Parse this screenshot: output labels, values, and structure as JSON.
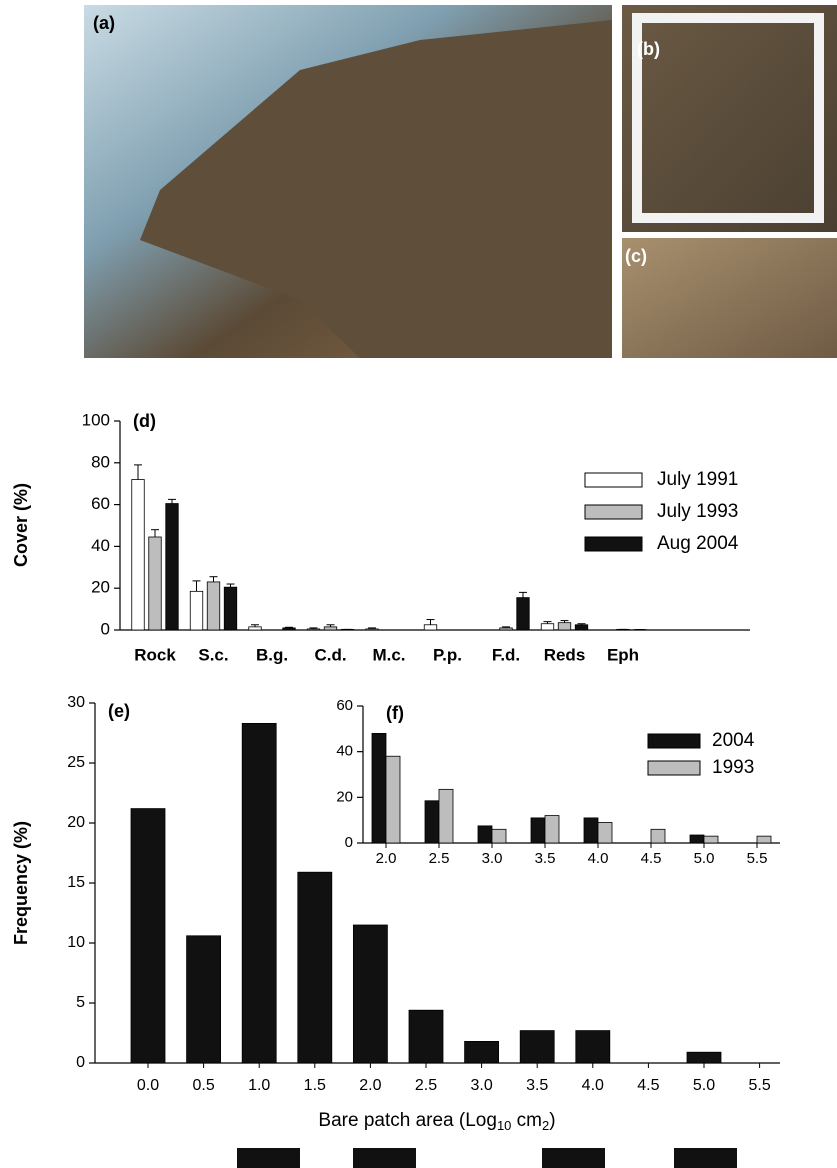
{
  "photos": [
    {
      "label": "(a)"
    },
    {
      "label": "(b)"
    },
    {
      "label": "(c)"
    }
  ],
  "chart_data": [
    {
      "type": "bar",
      "panel_label": "(d)",
      "y_label": "Cover (%)",
      "categories": [
        "Rock",
        "S.c.",
        "B.g.",
        "C.d.",
        "M.c.",
        "P.p.",
        "F.d.",
        "Reds",
        "Eph"
      ],
      "series": [
        {
          "name": "July 1991",
          "color": "#ffffff",
          "values": [
            72,
            18.5,
            1.5,
            0.5,
            0.5,
            2.5,
            0,
            3,
            0
          ],
          "errors": [
            7,
            5,
            1,
            0.5,
            0.5,
            2.5,
            0,
            1,
            0
          ]
        },
        {
          "name": "July 1993",
          "color": "#bdbdbd",
          "values": [
            44.5,
            23,
            0,
            1.5,
            0,
            0,
            1,
            3.5,
            0.3
          ],
          "errors": [
            3.5,
            2.5,
            0,
            1,
            0,
            0,
            0.5,
            1,
            0
          ]
        },
        {
          "name": "Aug 2004",
          "color": "#111111",
          "values": [
            60.5,
            20.5,
            1,
            0.3,
            0,
            0,
            15.5,
            2.5,
            0.2
          ],
          "errors": [
            2,
            1.5,
            0.3,
            0,
            0,
            0,
            2.5,
            0.5,
            0
          ]
        }
      ],
      "ylim": [
        0,
        100
      ],
      "yticks": [
        0,
        20,
        40,
        60,
        80,
        100
      ]
    },
    {
      "type": "bar",
      "panel_label": "(e)",
      "y_label": "Frequency (%)",
      "x_label": [
        "Bare patch area (Log",
        "10",
        " cm",
        "2",
        ")"
      ],
      "categories": [
        "0.0",
        "0.5",
        "1.0",
        "1.5",
        "2.0",
        "2.5",
        "3.0",
        "3.5",
        "4.0",
        "4.5",
        "5.0",
        "5.5"
      ],
      "values": [
        21.2,
        10.6,
        28.3,
        15.9,
        11.5,
        4.4,
        1.8,
        2.7,
        2.7,
        0,
        0.9,
        0
      ],
      "color": "#111111",
      "ylim": [
        0,
        30
      ],
      "yticks": [
        0,
        5,
        10,
        15,
        20,
        25,
        30
      ]
    },
    {
      "type": "bar",
      "panel_label": "(f)",
      "categories": [
        "2.0",
        "2.5",
        "3.0",
        "3.5",
        "4.0",
        "4.5",
        "5.0",
        "5.5"
      ],
      "series": [
        {
          "name": "2004",
          "color": "#111111",
          "values": [
            48,
            18.5,
            7.5,
            11,
            11,
            0,
            3.5,
            0
          ]
        },
        {
          "name": "1993",
          "color": "#bdbdbd",
          "values": [
            38,
            23.5,
            6,
            12,
            9,
            6,
            3,
            3
          ]
        }
      ],
      "ylim": [
        0,
        60
      ],
      "yticks": [
        0,
        20,
        40,
        60
      ]
    }
  ]
}
